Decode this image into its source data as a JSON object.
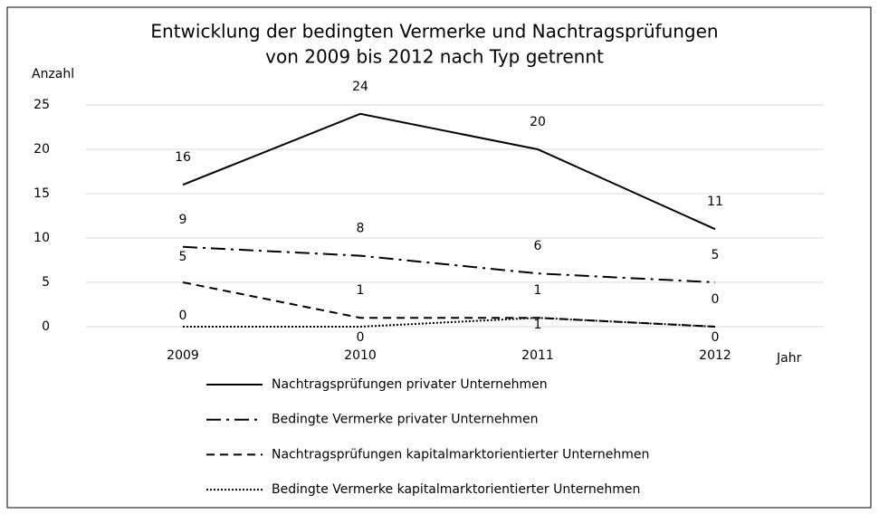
{
  "chart_data": {
    "type": "line",
    "title": [
      "Entwicklung der bedingten Vermerke und Nachtragsprüfungen",
      "von 2009 bis 2012 nach Typ getrennt"
    ],
    "y_label": "Anzahl",
    "x_label": "Jahr",
    "categories": [
      "2009",
      "2010",
      "2011",
      "2012"
    ],
    "series": [
      {
        "name": "Nachtragsprüfungen privater Unternehmen",
        "color": "#000000",
        "dash": "solid",
        "values": [
          16,
          24,
          20,
          11
        ]
      },
      {
        "name": "Bedingte Vermerke privater Unternehmen",
        "color": "#000000",
        "dash": "dashdot",
        "values": [
          9,
          8,
          6,
          5
        ]
      },
      {
        "name": "Nachtragsprüfungen kapitalmarktorientierter Unternehmen",
        "color": "#000000",
        "dash": "dashed",
        "values": [
          5,
          1,
          1,
          0
        ]
      },
      {
        "name": "Bedingte Vermerke kapitalmarktorientierter Unternehmen",
        "color": "#000000",
        "dash": "dotted",
        "values": [
          0,
          0,
          1,
          0
        ]
      }
    ],
    "ylim": [
      0,
      25
    ],
    "yticks": [
      0,
      5,
      10,
      15,
      20,
      25
    ],
    "grid": true,
    "legend": "bottom"
  }
}
